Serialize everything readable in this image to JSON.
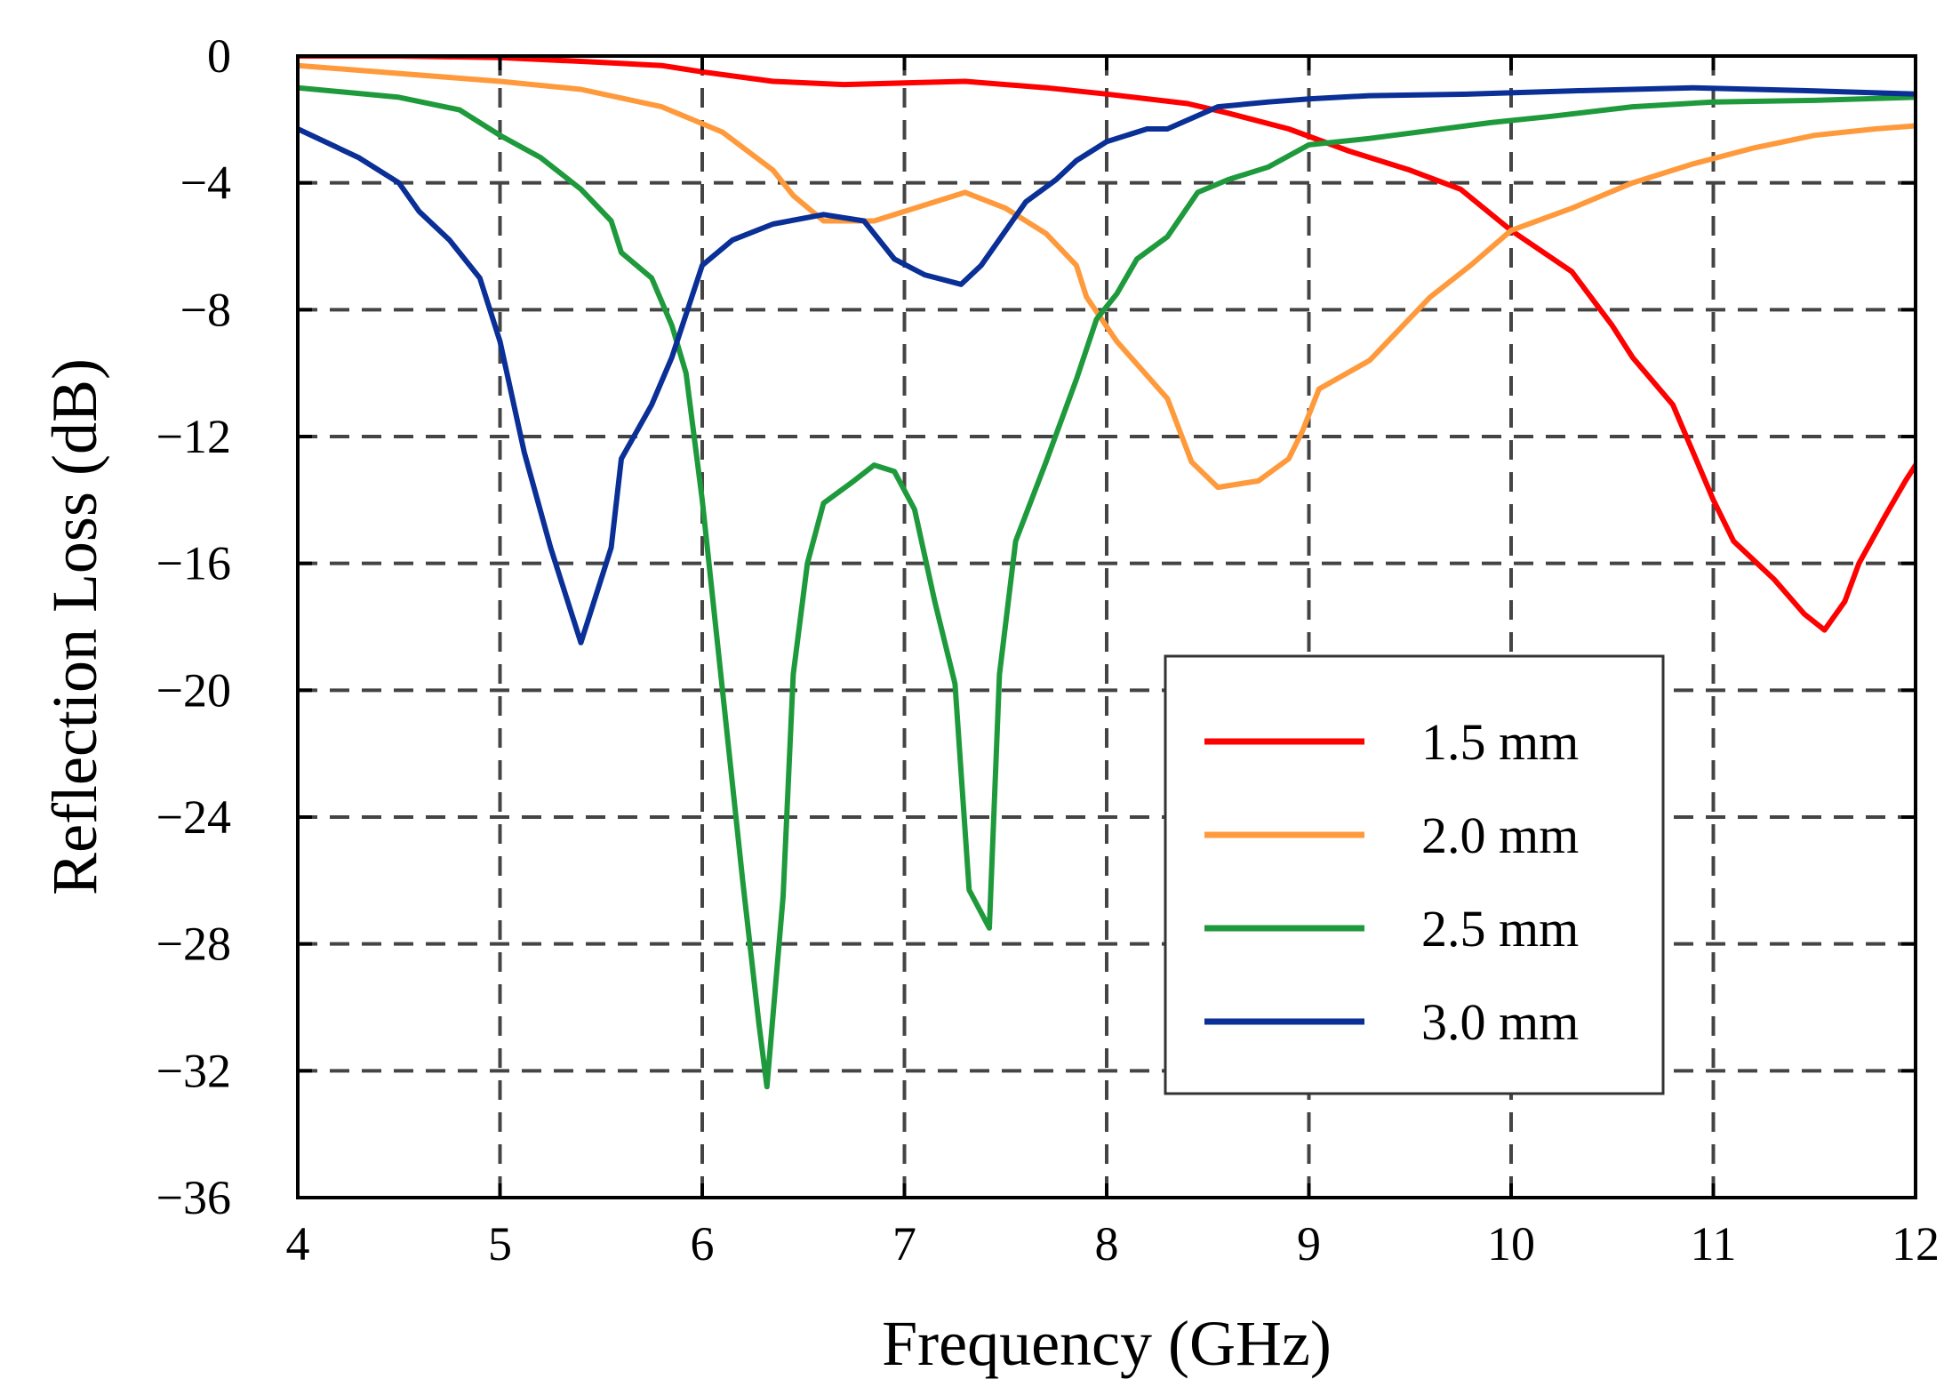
{
  "chart_data": {
    "type": "line",
    "xlabel": "Frequency (GHz)",
    "ylabel": "Reflection Loss (dB)",
    "xlim": [
      4,
      12
    ],
    "ylim": [
      -36,
      0
    ],
    "xticks": [
      4,
      5,
      6,
      7,
      8,
      9,
      10,
      11,
      12
    ],
    "xtick_labels": [
      "4",
      "5",
      "6",
      "7",
      "8",
      "9",
      "10",
      "11",
      "12"
    ],
    "yticks": [
      0,
      -4,
      -8,
      -12,
      -16,
      -20,
      -24,
      -28,
      -32,
      -36
    ],
    "ytick_labels": [
      "0",
      "−4",
      "−8",
      "−12",
      "−16",
      "−20",
      "−24",
      "−28",
      "−32",
      "−36"
    ],
    "grid": true,
    "legend_position": "lower-right",
    "series": [
      {
        "name": "1.5 mm",
        "color": "#ff0000",
        "x": [
          4,
          4.5,
          5,
          5.5,
          5.8,
          6,
          6.35,
          6.7,
          7,
          7.3,
          7.7,
          8.0,
          8.4,
          8.6,
          8.9,
          9.2,
          9.5,
          9.75,
          10.0,
          10.3,
          10.5,
          10.6,
          10.8,
          11.0,
          11.1,
          11.3,
          11.45,
          11.55,
          11.65,
          11.72,
          11.85,
          11.95,
          12
        ],
        "y": [
          0,
          0,
          -0.05,
          -0.2,
          -0.3,
          -0.5,
          -0.8,
          -0.9,
          -0.85,
          -0.8,
          -1.0,
          -1.2,
          -1.5,
          -1.8,
          -2.3,
          -3.0,
          -3.6,
          -4.2,
          -5.5,
          -6.8,
          -8.5,
          -9.5,
          -11.0,
          -14.0,
          -15.3,
          -16.5,
          -17.6,
          -18.1,
          -17.2,
          -16.0,
          -14.5,
          -13.4,
          -12.9
        ]
      },
      {
        "name": "2.0 mm",
        "color": "#ff9a3c",
        "x": [
          4,
          4.5,
          5,
          5.4,
          5.8,
          6.1,
          6.35,
          6.45,
          6.6,
          6.85,
          7.1,
          7.3,
          7.5,
          7.7,
          7.85,
          7.9,
          8.05,
          8.3,
          8.42,
          8.55,
          8.75,
          8.9,
          8.97,
          9.05,
          9.3,
          9.6,
          9.8,
          10.0,
          10.3,
          10.6,
          10.9,
          11.2,
          11.5,
          11.8,
          12
        ],
        "y": [
          -0.3,
          -0.55,
          -0.8,
          -1.05,
          -1.6,
          -2.4,
          -3.6,
          -4.4,
          -5.2,
          -5.2,
          -4.7,
          -4.3,
          -4.8,
          -5.6,
          -6.6,
          -7.6,
          -9.0,
          -10.8,
          -12.8,
          -13.6,
          -13.4,
          -12.7,
          -11.8,
          -10.5,
          -9.6,
          -7.6,
          -6.6,
          -5.5,
          -4.8,
          -4.0,
          -3.4,
          -2.9,
          -2.5,
          -2.3,
          -2.2
        ]
      },
      {
        "name": "2.5 mm",
        "color": "#1e9a3c",
        "x": [
          4,
          4.5,
          4.8,
          5,
          5.2,
          5.4,
          5.55,
          5.6,
          5.75,
          5.85,
          5.92,
          6.0,
          6.1,
          6.2,
          6.28,
          6.32,
          6.4,
          6.45,
          6.52,
          6.6,
          6.75,
          6.85,
          6.95,
          7.05,
          7.15,
          7.25,
          7.32,
          7.42,
          7.47,
          7.55,
          7.7,
          7.85,
          7.95,
          8.05,
          8.15,
          8.3,
          8.45,
          8.6,
          8.8,
          9.0,
          9.3,
          9.6,
          9.9,
          10.2,
          10.6,
          11.0,
          11.5,
          12
        ],
        "y": [
          -1.0,
          -1.3,
          -1.7,
          -2.5,
          -3.2,
          -4.2,
          -5.2,
          -6.2,
          -7.0,
          -8.5,
          -10.0,
          -14.0,
          -20.0,
          -26.0,
          -30.5,
          -32.5,
          -26.5,
          -19.5,
          -16.0,
          -14.1,
          -13.4,
          -12.9,
          -13.1,
          -14.3,
          -17.2,
          -19.8,
          -26.3,
          -27.5,
          -19.5,
          -15.3,
          -12.8,
          -10.2,
          -8.3,
          -7.5,
          -6.4,
          -5.7,
          -4.3,
          -3.9,
          -3.5,
          -2.8,
          -2.6,
          -2.35,
          -2.1,
          -1.9,
          -1.6,
          -1.45,
          -1.4,
          -1.3
        ]
      },
      {
        "name": "3.0 mm",
        "color": "#0a2f96",
        "x": [
          4,
          4.3,
          4.5,
          4.6,
          4.75,
          4.9,
          5.0,
          5.12,
          5.25,
          5.35,
          5.4,
          5.45,
          5.55,
          5.6,
          5.75,
          5.85,
          6.0,
          6.15,
          6.35,
          6.6,
          6.8,
          6.95,
          7.1,
          7.28,
          7.38,
          7.6,
          7.75,
          7.85,
          8.0,
          8.2,
          8.3,
          8.55,
          8.8,
          9.0,
          9.3,
          9.8,
          10.3,
          10.9,
          11.5,
          12
        ],
        "y": [
          -2.3,
          -3.2,
          -4.0,
          -4.9,
          -5.8,
          -7.0,
          -9.0,
          -12.5,
          -15.5,
          -17.5,
          -18.5,
          -17.5,
          -15.5,
          -12.7,
          -11.0,
          -9.5,
          -6.6,
          -5.8,
          -5.3,
          -5.0,
          -5.2,
          -6.4,
          -6.9,
          -7.2,
          -6.6,
          -4.6,
          -3.9,
          -3.3,
          -2.7,
          -2.3,
          -2.3,
          -1.6,
          -1.45,
          -1.35,
          -1.25,
          -1.2,
          -1.1,
          -1.0,
          -1.1,
          -1.2
        ]
      }
    ]
  }
}
